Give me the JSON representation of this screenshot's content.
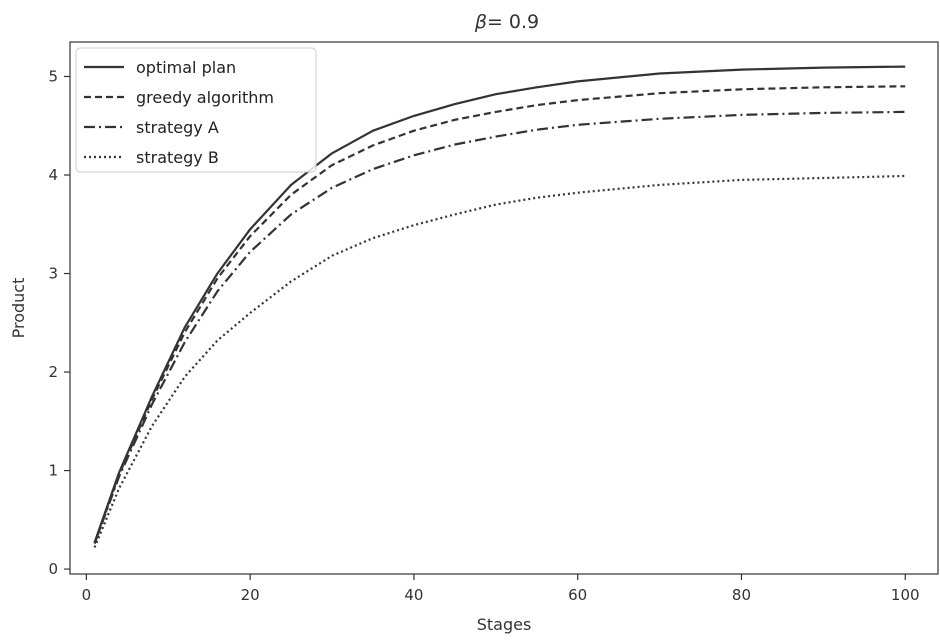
{
  "chart_data": {
    "type": "line",
    "title": {
      "symbol": "β",
      "rest": "= 0.9"
    },
    "xlabel": "Stages",
    "ylabel": "Product",
    "xlim": [
      -2,
      104
    ],
    "ylim": [
      -0.05,
      5.35
    ],
    "xticks": [
      0,
      20,
      40,
      60,
      80,
      100
    ],
    "yticks": [
      0,
      1,
      2,
      3,
      4,
      5
    ],
    "grid": false,
    "legend": {
      "placement": "top-left",
      "entries": [
        "optimal plan",
        "greedy algorithm",
        "strategy A",
        "strategy B"
      ]
    },
    "x": [
      1,
      4,
      8,
      12,
      16,
      20,
      25,
      30,
      35,
      40,
      45,
      50,
      55,
      60,
      70,
      80,
      90,
      100
    ],
    "series": [
      {
        "name": "optimal plan",
        "style": "solid",
        "values": [
          0.27,
          0.98,
          1.75,
          2.45,
          3.0,
          3.45,
          3.9,
          4.22,
          4.45,
          4.6,
          4.72,
          4.82,
          4.89,
          4.95,
          5.03,
          5.07,
          5.09,
          5.1
        ]
      },
      {
        "name": "greedy algorithm",
        "style": "dashed",
        "values": [
          0.26,
          0.96,
          1.72,
          2.4,
          2.95,
          3.38,
          3.8,
          4.1,
          4.3,
          4.45,
          4.56,
          4.64,
          4.71,
          4.76,
          4.83,
          4.87,
          4.89,
          4.9
        ]
      },
      {
        "name": "strategy A",
        "style": "dashdot",
        "values": [
          0.26,
          0.94,
          1.67,
          2.3,
          2.82,
          3.22,
          3.6,
          3.87,
          4.06,
          4.2,
          4.31,
          4.39,
          4.46,
          4.51,
          4.57,
          4.61,
          4.63,
          4.64
        ]
      },
      {
        "name": "strategy B",
        "style": "dotted",
        "values": [
          0.22,
          0.82,
          1.45,
          1.95,
          2.32,
          2.6,
          2.92,
          3.18,
          3.36,
          3.49,
          3.6,
          3.7,
          3.77,
          3.82,
          3.9,
          3.95,
          3.97,
          3.99
        ]
      }
    ]
  },
  "colors": {
    "line": "#333333",
    "axis": "#333333",
    "background": "#ffffff",
    "legend_border": "#cccccc"
  }
}
